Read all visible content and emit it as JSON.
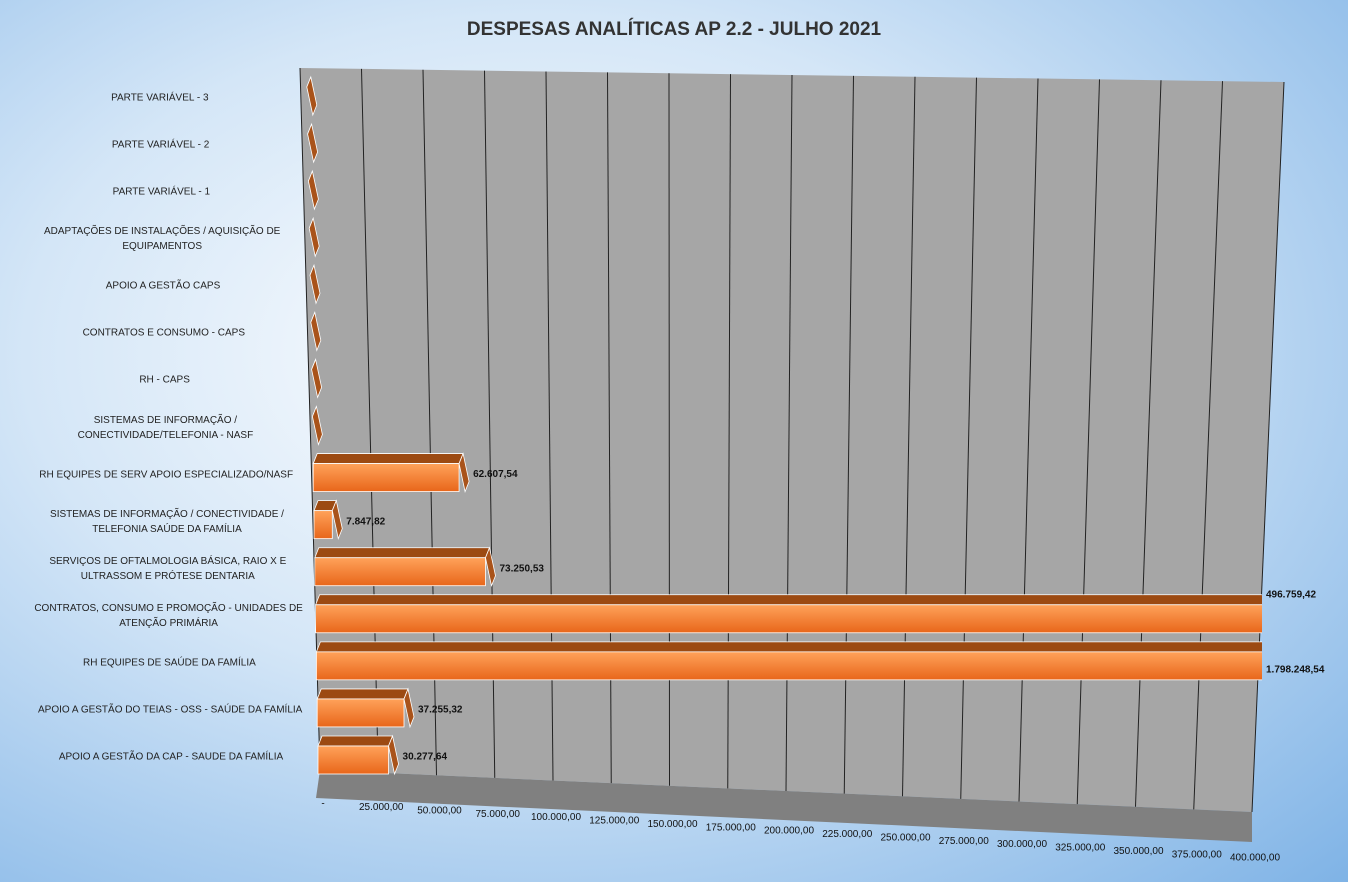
{
  "chart_data": {
    "type": "bar3d_horizontal",
    "title": "DESPESAS ANALÍTICAS AP 2.2 - JULHO 2021",
    "categories": [
      "APOIO A GESTÃO DA CAP - SAUDE DA FAMÍLIA",
      "APOIO A GESTÃO DO TEIAS - OSS - SAÚDE DA FAMÍLIA",
      "RH EQUIPES DE SAÚDE DA FAMÍLIA",
      "CONTRATOS, CONSUMO E PROMOÇÃO - UNIDADES DE ATENÇÃO PRIMÁRIA",
      "SERVIÇOS DE OFTALMOLOGIA BÁSICA, RAIO X E ULTRASSOM E PRÓTESE DENTARIA",
      "SISTEMAS DE INFORMAÇÃO / CONECTIVIDADE / TELEFONIA SAÚDE DA FAMÍLIA",
      "RH EQUIPES DE SERV APOIO ESPECIALIZADO/NASF",
      "SISTEMAS DE INFORMAÇÃO / CONECTIVIDADE/TELEFONIA - NASF",
      "RH - CAPS",
      "CONTRATOS E CONSUMO - CAPS",
      "APOIO A GESTÃO CAPS",
      "ADAPTAÇÕES DE INSTALAÇÕES / AQUISIÇÃO DE EQUIPAMENTOS",
      "PARTE VARIÁVEL - 1",
      "PARTE VARIÁVEL - 2",
      "PARTE VARIÁVEL - 3"
    ],
    "values": [
      30277.64,
      37255.32,
      1798248.54,
      496759.42,
      73250.53,
      7847.82,
      62607.54,
      0,
      0,
      0,
      0,
      0,
      0,
      0,
      0
    ],
    "value_labels": [
      "30.277,64",
      "37.255,32",
      "1.798.248,54",
      "496.759,42",
      "73.250,53",
      "7.847,82",
      "62.607,54",
      null,
      null,
      null,
      null,
      null,
      null,
      null,
      null
    ],
    "color": "#f07b2a",
    "xlim": [
      0,
      400000
    ],
    "xticks": [
      {
        "value": 0,
        "label": "-"
      },
      {
        "value": 25000,
        "label": "25.000,00"
      },
      {
        "value": 50000,
        "label": "50.000,00"
      },
      {
        "value": 75000,
        "label": "75.000,00"
      },
      {
        "value": 100000,
        "label": "100.000,00"
      },
      {
        "value": 125000,
        "label": "125.000,00"
      },
      {
        "value": 150000,
        "label": "150.000,00"
      },
      {
        "value": 175000,
        "label": "175.000,00"
      },
      {
        "value": 200000,
        "label": "200.000,00"
      },
      {
        "value": 225000,
        "label": "225.000,00"
      },
      {
        "value": 250000,
        "label": "250.000,00"
      },
      {
        "value": 275000,
        "label": "275.000,00"
      },
      {
        "value": 300000,
        "label": "300.000,00"
      },
      {
        "value": 325000,
        "label": "325.000,00"
      },
      {
        "value": 350000,
        "label": "350.000,00"
      },
      {
        "value": 375000,
        "label": "375.000,00"
      },
      {
        "value": 400000,
        "label": "400.000,00"
      }
    ],
    "grid": true
  }
}
